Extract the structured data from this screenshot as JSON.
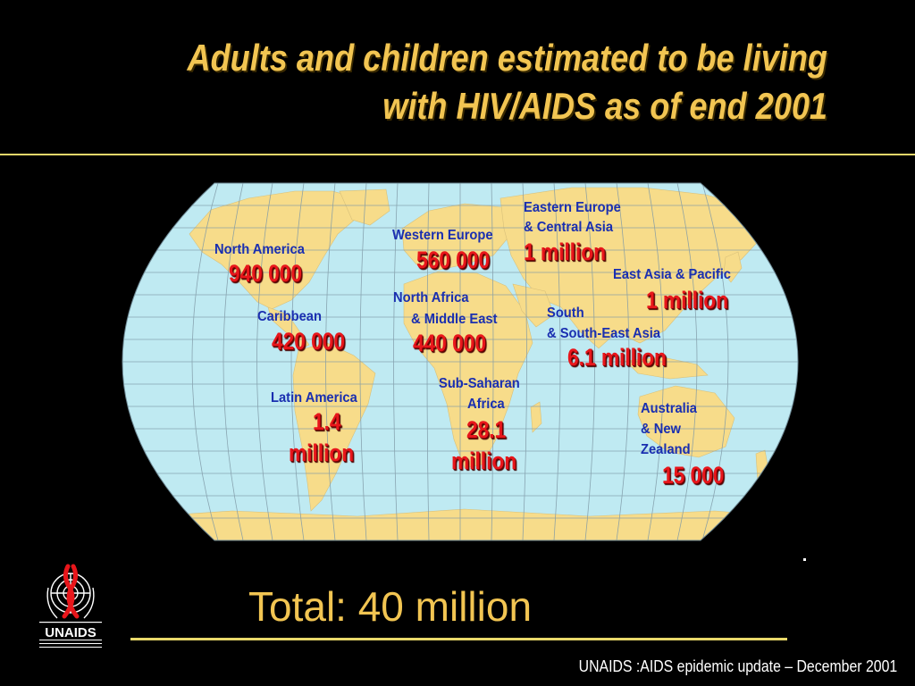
{
  "slide": {
    "title_line1": "Adults and children estimated to be living",
    "title_line2": "with HIV/AIDS as of end 2001",
    "total": "Total: 40 million",
    "source": "UNAIDS :AIDS epidemic update – December 2001",
    "logo_text": "UNAIDS"
  },
  "regions": {
    "north_america": {
      "name": "North America",
      "value": "940 000"
    },
    "caribbean": {
      "name": "Caribbean",
      "value": "420 000"
    },
    "latin_america": {
      "name": "Latin America",
      "value_line1": "1.4",
      "value_line2": "million"
    },
    "western_europe": {
      "name": "Western Europe",
      "value": "560 000"
    },
    "north_africa": {
      "name_line1": "North Africa",
      "name_line2": "& Middle East",
      "value": "440 000"
    },
    "sub_saharan": {
      "name_line1": "Sub-Saharan",
      "name_line2": "Africa",
      "value_line1": "28.1",
      "value_line2": "million"
    },
    "eastern_europe": {
      "name_line1": "Eastern Europe",
      "name_line2": "& Central Asia",
      "value": "1 million"
    },
    "east_asia": {
      "name": "East Asia & Pacific",
      "value": "1 million"
    },
    "south_asia": {
      "name_line1": "South",
      "name_line2": "& South-East Asia",
      "value": "6.1 million"
    },
    "australia": {
      "name_line1": "Australia",
      "name_line2": "& New",
      "name_line3": "Zealand",
      "value": "15 000"
    }
  },
  "colors": {
    "background": "#000000",
    "title": "#f2c552",
    "ocean": "#bfeaf2",
    "land": "#f7dc8a",
    "label": "#1a2fb0",
    "value": "#e8161b"
  }
}
